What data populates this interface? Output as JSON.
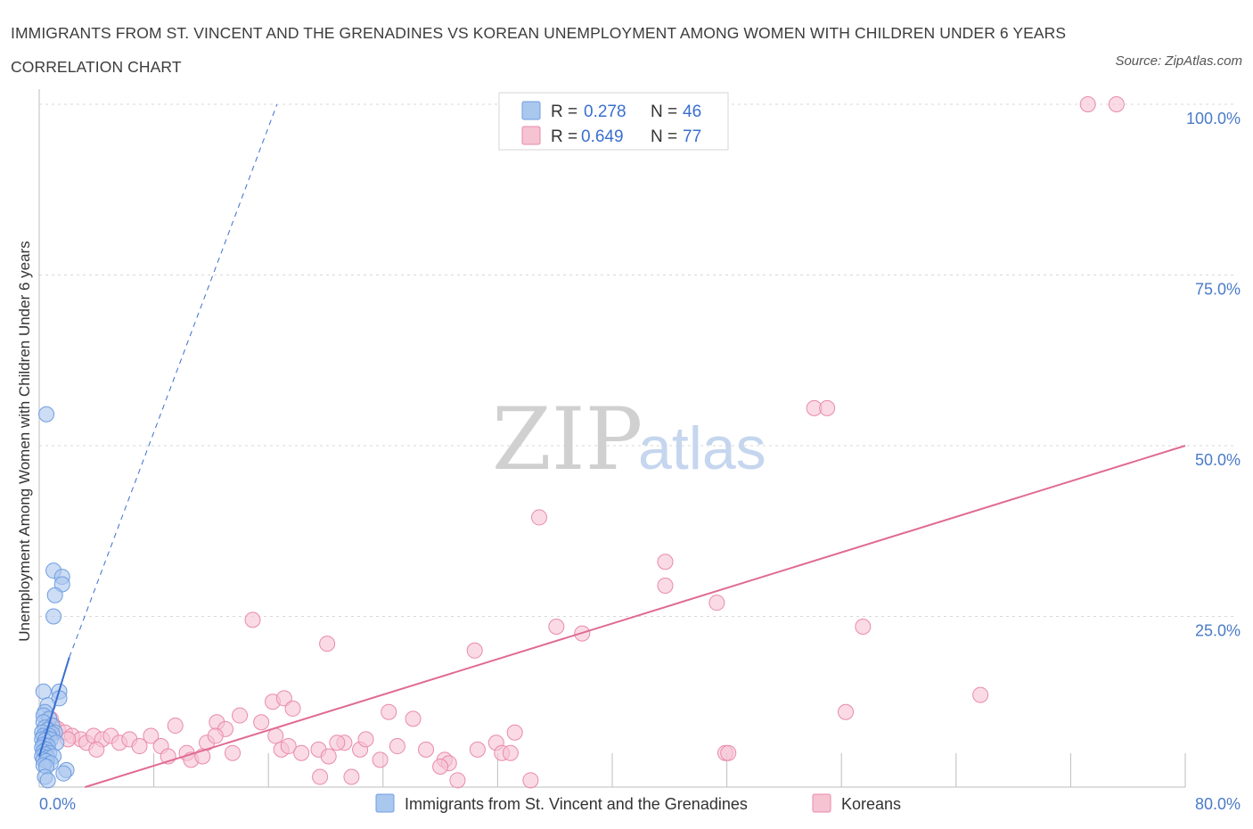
{
  "header": {
    "title": "IMMIGRANTS FROM ST. VINCENT AND THE GRENADINES VS KOREAN UNEMPLOYMENT AMONG WOMEN WITH CHILDREN UNDER 6 YEARS CORRELATION CHART",
    "source": "Source: ZipAtlas.com"
  },
  "watermark": {
    "zip": "ZIP",
    "atlas": "atlas"
  },
  "colors": {
    "blue_fill": "#aac7ee",
    "blue_stroke": "#6f9de0",
    "blue_line": "#3a6fd0",
    "pink_fill": "#f6c3d3",
    "pink_stroke": "#e98aab",
    "pink_line": "#e06a94",
    "grid": "#d8d8d8",
    "axis_text": "#4a7bc8"
  },
  "legend": {
    "blue": {
      "r_label": "R =",
      "r_value": "0.278",
      "n_label": "N =",
      "n_value": "46"
    },
    "pink": {
      "r_label": "R =",
      "r_value": "0.649",
      "n_label": "N =",
      "n_value": "77"
    }
  },
  "bottom_legend": {
    "blue_label": "Immigrants from St. Vincent and the Grenadines",
    "pink_label": "Koreans"
  },
  "chart_data": {
    "type": "scatter",
    "title": "IMMIGRANTS FROM ST. VINCENT AND THE GRENADINES VS KOREAN UNEMPLOYMENT AMONG WOMEN WITH CHILDREN UNDER 6 YEARS CORRELATION CHART",
    "xlabel": "",
    "ylabel": "Unemployment Among Women with Children Under 6 years",
    "xlim": [
      0,
      80
    ],
    "ylim": [
      0,
      100
    ],
    "x_tick_labels": [
      "0.0%",
      "80.0%"
    ],
    "y_tick_labels": [
      "25.0%",
      "50.0%",
      "75.0%",
      "100.0%"
    ],
    "y_ticks": [
      25,
      50,
      75,
      100
    ],
    "x_minor_ticks": [
      8,
      16,
      24,
      32,
      40,
      48,
      56,
      64,
      72,
      80
    ],
    "grid": true,
    "series": [
      {
        "name": "Immigrants from St. Vincent and the Grenadines",
        "color": "blue",
        "points": [
          [
            0.5,
            54.6
          ],
          [
            1.0,
            31.7
          ],
          [
            1.6,
            30.8
          ],
          [
            1.6,
            29.7
          ],
          [
            1.1,
            28.1
          ],
          [
            1.0,
            25.0
          ],
          [
            0.3,
            14.0
          ],
          [
            1.4,
            14.0
          ],
          [
            1.4,
            13.0
          ],
          [
            0.6,
            12.0
          ],
          [
            0.4,
            11.0
          ],
          [
            0.3,
            10.5
          ],
          [
            0.7,
            10.0
          ],
          [
            0.3,
            9.5
          ],
          [
            0.9,
            9.0
          ],
          [
            0.4,
            8.7
          ],
          [
            0.6,
            8.4
          ],
          [
            0.2,
            8.0
          ],
          [
            1.1,
            8.0
          ],
          [
            0.9,
            7.8
          ],
          [
            0.3,
            7.5
          ],
          [
            0.7,
            7.5
          ],
          [
            0.5,
            7.2
          ],
          [
            0.2,
            7.0
          ],
          [
            0.8,
            7.0
          ],
          [
            0.4,
            6.8
          ],
          [
            1.2,
            6.5
          ],
          [
            0.3,
            6.2
          ],
          [
            0.6,
            6.0
          ],
          [
            0.2,
            5.8
          ],
          [
            0.5,
            5.5
          ],
          [
            0.3,
            5.2
          ],
          [
            0.7,
            5.0
          ],
          [
            0.4,
            4.8
          ],
          [
            0.2,
            4.5
          ],
          [
            0.6,
            4.3
          ],
          [
            1.0,
            4.5
          ],
          [
            0.3,
            4.0
          ],
          [
            0.5,
            3.8
          ],
          [
            0.8,
            3.5
          ],
          [
            0.3,
            3.2
          ],
          [
            0.5,
            3.0
          ],
          [
            1.9,
            2.5
          ],
          [
            1.7,
            2.0
          ],
          [
            0.4,
            1.5
          ],
          [
            0.6,
            1.0
          ]
        ]
      },
      {
        "name": "Koreans",
        "color": "pink",
        "points": [
          [
            73.2,
            100.0
          ],
          [
            75.2,
            100.0
          ],
          [
            54.1,
            55.5
          ],
          [
            55.0,
            55.5
          ],
          [
            34.9,
            39.5
          ],
          [
            43.7,
            33.0
          ],
          [
            43.7,
            29.5
          ],
          [
            47.3,
            27.0
          ],
          [
            36.1,
            23.5
          ],
          [
            37.9,
            22.5
          ],
          [
            57.5,
            23.5
          ],
          [
            14.9,
            24.5
          ],
          [
            20.1,
            21.0
          ],
          [
            30.4,
            20.0
          ],
          [
            65.7,
            13.5
          ],
          [
            56.3,
            11.0
          ],
          [
            16.3,
            12.5
          ],
          [
            17.1,
            13.0
          ],
          [
            17.7,
            11.5
          ],
          [
            24.4,
            11.0
          ],
          [
            26.1,
            10.0
          ],
          [
            14.0,
            10.5
          ],
          [
            15.5,
            9.5
          ],
          [
            12.4,
            9.5
          ],
          [
            13.0,
            8.5
          ],
          [
            9.5,
            9.0
          ],
          [
            0.8,
            10.0
          ],
          [
            1.0,
            9.0
          ],
          [
            1.3,
            8.5
          ],
          [
            1.8,
            8.0
          ],
          [
            2.3,
            7.5
          ],
          [
            2.9,
            7.0
          ],
          [
            3.3,
            6.5
          ],
          [
            3.8,
            7.5
          ],
          [
            4.4,
            7.0
          ],
          [
            5.0,
            7.5
          ],
          [
            5.6,
            6.5
          ],
          [
            6.3,
            7.0
          ],
          [
            7.0,
            6.0
          ],
          [
            7.8,
            7.5
          ],
          [
            8.5,
            6.0
          ],
          [
            9.0,
            4.5
          ],
          [
            10.3,
            5.0
          ],
          [
            10.6,
            4.0
          ],
          [
            11.7,
            6.5
          ],
          [
            12.3,
            7.5
          ],
          [
            13.5,
            5.0
          ],
          [
            16.5,
            7.5
          ],
          [
            16.9,
            5.5
          ],
          [
            17.4,
            6.0
          ],
          [
            18.3,
            5.0
          ],
          [
            19.5,
            5.5
          ],
          [
            20.2,
            4.5
          ],
          [
            21.3,
            6.5
          ],
          [
            22.4,
            5.5
          ],
          [
            22.8,
            7.0
          ],
          [
            23.8,
            4.0
          ],
          [
            25.0,
            6.0
          ],
          [
            27.0,
            5.5
          ],
          [
            28.3,
            4.0
          ],
          [
            28.6,
            3.5
          ],
          [
            29.2,
            1.0
          ],
          [
            30.6,
            5.5
          ],
          [
            31.9,
            6.5
          ],
          [
            32.3,
            5.0
          ],
          [
            32.9,
            5.0
          ],
          [
            33.2,
            8.0
          ],
          [
            34.3,
            1.0
          ],
          [
            47.9,
            5.0
          ],
          [
            48.1,
            5.0
          ],
          [
            19.6,
            1.5
          ],
          [
            21.8,
            1.5
          ],
          [
            28.0,
            3.0
          ],
          [
            20.8,
            6.5
          ],
          [
            11.4,
            4.5
          ],
          [
            4.0,
            5.5
          ],
          [
            2.0,
            7.0
          ]
        ]
      }
    ],
    "trendlines": [
      {
        "series": "Immigrants from St. Vincent and the Grenadines",
        "style": "solid",
        "from": [
          0.0,
          4.5
        ],
        "to": [
          2.1,
          19.0
        ]
      },
      {
        "series": "Immigrants from St. Vincent and the Grenadines",
        "style": "dashed",
        "from": [
          2.1,
          19.0
        ],
        "to": [
          16.6,
          100.0
        ]
      },
      {
        "series": "Koreans",
        "style": "solid",
        "from": [
          3.2,
          0.0
        ],
        "to": [
          80.0,
          50.0
        ]
      }
    ]
  }
}
